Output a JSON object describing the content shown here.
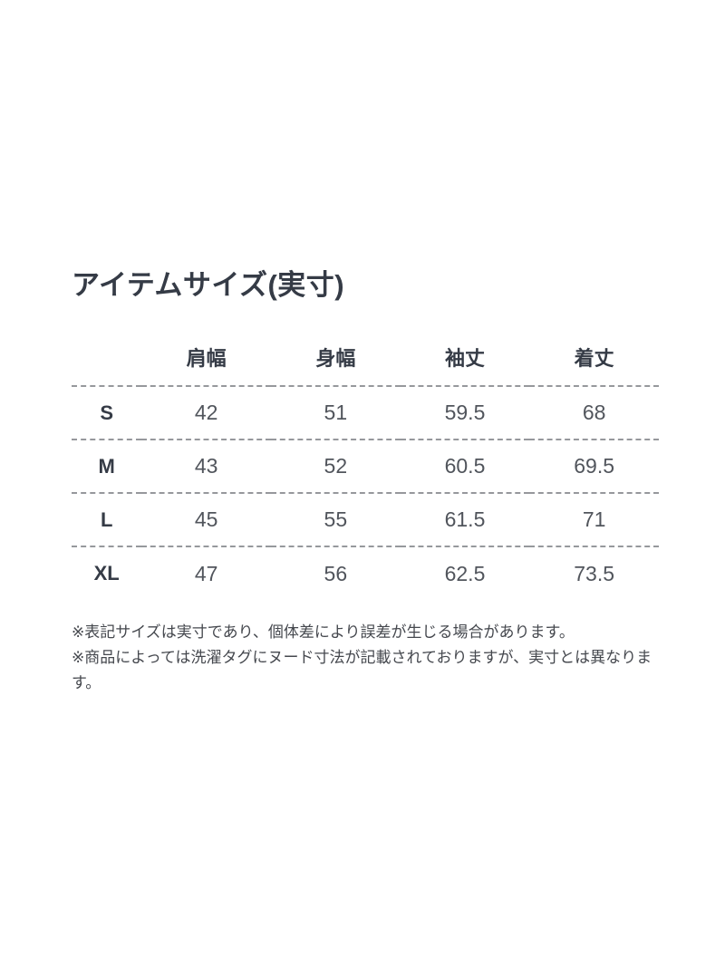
{
  "title": "アイテムサイズ(実寸)",
  "table": {
    "size_header": "",
    "columns": [
      "肩幅",
      "身幅",
      "袖丈",
      "着丈"
    ],
    "rows": [
      {
        "size": "S",
        "values": [
          "42",
          "51",
          "59.5",
          "68"
        ]
      },
      {
        "size": "M",
        "values": [
          "43",
          "52",
          "60.5",
          "69.5"
        ]
      },
      {
        "size": "L",
        "values": [
          "45",
          "55",
          "61.5",
          "71"
        ]
      },
      {
        "size": "XL",
        "values": [
          "47",
          "56",
          "62.5",
          "73.5"
        ]
      }
    ]
  },
  "notes": [
    "※表記サイズは実寸であり、個体差により誤差が生じる場合があります。",
    "※商品によっては洗濯タグにヌード寸法が記載されておりますが、実寸とは異なります。"
  ],
  "colors": {
    "background": "#ffffff",
    "heading_text": "#353b46",
    "cell_text": "#51555c",
    "note_text": "#45484e",
    "divider": "#96989c"
  }
}
